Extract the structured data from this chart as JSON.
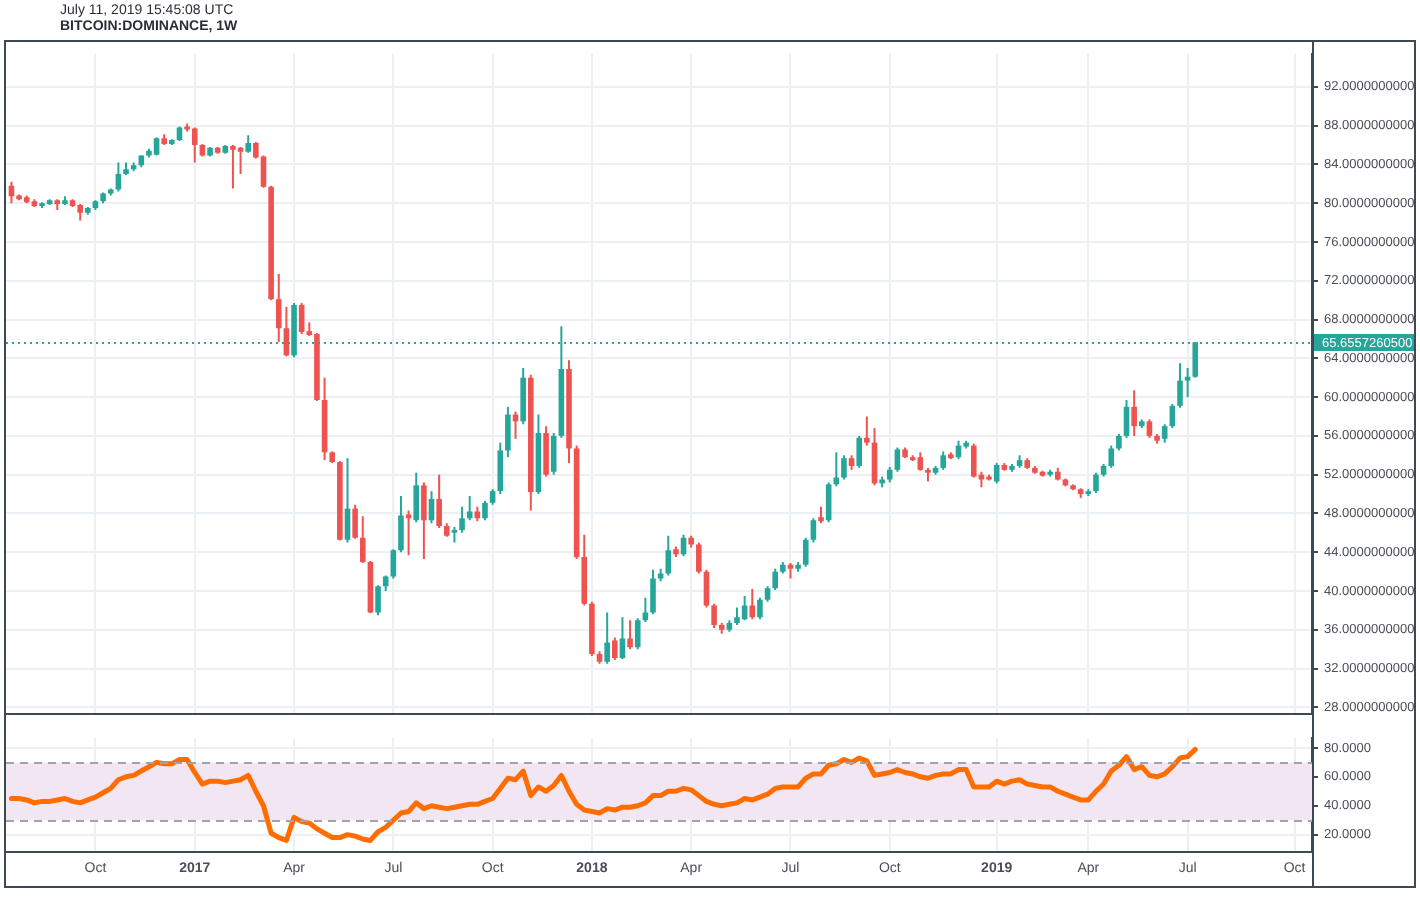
{
  "chart_data": [
    {
      "type": "candlestick",
      "title": "BITCOIN:DOMINANCE, 1W",
      "annotations": [
        "July 11, 2019 15:45:08 UTC"
      ],
      "x": [
        "2016-07-18",
        "2016-07-25",
        "2016-08-01",
        "2016-08-08",
        "2016-08-15",
        "2016-08-22",
        "2016-08-29",
        "2016-09-05",
        "2016-09-12",
        "2016-09-19",
        "2016-09-26",
        "2016-10-03",
        "2016-10-10",
        "2016-10-17",
        "2016-10-24",
        "2016-10-31",
        "2016-11-07",
        "2016-11-14",
        "2016-11-21",
        "2016-11-28",
        "2016-12-05",
        "2016-12-12",
        "2016-12-19",
        "2016-12-26",
        "2017-01-02",
        "2017-01-09",
        "2017-01-16",
        "2017-01-23",
        "2017-01-30",
        "2017-02-06",
        "2017-02-13",
        "2017-02-20",
        "2017-02-27",
        "2017-03-06",
        "2017-03-13",
        "2017-03-20",
        "2017-03-27",
        "2017-04-03",
        "2017-04-10",
        "2017-04-17",
        "2017-04-24",
        "2017-05-01",
        "2017-05-08",
        "2017-05-15",
        "2017-05-22",
        "2017-05-29",
        "2017-06-05",
        "2017-06-12",
        "2017-06-19",
        "2017-06-26",
        "2017-07-03",
        "2017-07-10",
        "2017-07-17",
        "2017-07-24",
        "2017-07-31",
        "2017-08-07",
        "2017-08-14",
        "2017-08-21",
        "2017-08-28",
        "2017-09-04",
        "2017-09-11",
        "2017-09-18",
        "2017-09-25",
        "2017-10-02",
        "2017-10-09",
        "2017-10-16",
        "2017-10-23",
        "2017-10-30",
        "2017-11-06",
        "2017-11-13",
        "2017-11-20",
        "2017-11-27",
        "2017-12-04",
        "2017-12-11",
        "2017-12-18",
        "2017-12-25",
        "2018-01-01",
        "2018-01-08",
        "2018-01-15",
        "2018-01-22",
        "2018-01-29",
        "2018-02-05",
        "2018-02-12",
        "2018-02-19",
        "2018-02-26",
        "2018-03-05",
        "2018-03-12",
        "2018-03-19",
        "2018-03-26",
        "2018-04-02",
        "2018-04-09",
        "2018-04-16",
        "2018-04-23",
        "2018-04-30",
        "2018-05-07",
        "2018-05-14",
        "2018-05-21",
        "2018-05-28",
        "2018-06-04",
        "2018-06-11",
        "2018-06-18",
        "2018-06-25",
        "2018-07-02",
        "2018-07-09",
        "2018-07-16",
        "2018-07-23",
        "2018-07-30",
        "2018-08-06",
        "2018-08-13",
        "2018-08-20",
        "2018-08-27",
        "2018-09-03",
        "2018-09-10",
        "2018-09-17",
        "2018-09-24",
        "2018-10-01",
        "2018-10-08",
        "2018-10-15",
        "2018-10-22",
        "2018-10-29",
        "2018-11-05",
        "2018-11-12",
        "2018-11-19",
        "2018-11-26",
        "2018-12-03",
        "2018-12-10",
        "2018-12-17",
        "2018-12-24",
        "2018-12-31",
        "2019-01-07",
        "2019-01-14",
        "2019-01-21",
        "2019-01-28",
        "2019-02-04",
        "2019-02-11",
        "2019-02-18",
        "2019-02-25",
        "2019-03-04",
        "2019-03-11",
        "2019-03-18",
        "2019-03-25",
        "2019-04-01",
        "2019-04-08",
        "2019-04-15",
        "2019-04-22",
        "2019-04-29",
        "2019-05-06",
        "2019-05-13",
        "2019-05-20",
        "2019-05-27",
        "2019-06-03",
        "2019-06-10",
        "2019-06-17",
        "2019-06-24",
        "2019-07-01",
        "2019-07-08"
      ],
      "ohlc": [
        [
          81.8,
          82.2,
          80.0,
          80.7
        ],
        [
          80.8,
          80.9,
          80.3,
          80.4
        ],
        [
          80.6,
          80.8,
          80.0,
          80.1
        ],
        [
          80.2,
          80.4,
          79.6,
          79.7
        ],
        [
          79.7,
          80.1,
          79.5,
          80.0
        ],
        [
          79.9,
          80.4,
          79.8,
          80.3
        ],
        [
          80.3,
          80.4,
          79.3,
          79.9
        ],
        [
          79.9,
          80.7,
          79.8,
          80.3
        ],
        [
          80.3,
          80.4,
          79.6,
          79.7
        ],
        [
          79.8,
          79.9,
          78.2,
          79.0
        ],
        [
          79.0,
          79.6,
          78.8,
          79.5
        ],
        [
          79.5,
          80.3,
          79.3,
          80.2
        ],
        [
          80.2,
          81.1,
          80.0,
          81.0
        ],
        [
          81.0,
          81.5,
          80.8,
          81.4
        ],
        [
          81.4,
          84.2,
          81.2,
          83.0
        ],
        [
          83.0,
          84.2,
          82.9,
          83.5
        ],
        [
          83.5,
          84.2,
          83.3,
          83.9
        ],
        [
          83.9,
          84.9,
          83.7,
          84.9
        ],
        [
          84.9,
          85.6,
          84.7,
          85.4
        ],
        [
          85.0,
          86.8,
          84.9,
          86.7
        ],
        [
          86.7,
          87.1,
          86.0,
          86.1
        ],
        [
          86.1,
          86.6,
          86.0,
          86.5
        ],
        [
          86.5,
          87.9,
          86.4,
          87.8
        ],
        [
          87.9,
          88.2,
          87.4,
          87.6
        ],
        [
          87.7,
          87.8,
          84.2,
          86.0
        ],
        [
          86.0,
          86.1,
          84.8,
          84.9
        ],
        [
          84.9,
          85.8,
          84.8,
          85.7
        ],
        [
          85.7,
          85.8,
          85.1,
          85.2
        ],
        [
          85.2,
          86.0,
          85.1,
          85.9
        ],
        [
          85.9,
          86.0,
          81.5,
          85.5
        ],
        [
          85.7,
          85.8,
          83.0,
          85.3
        ],
        [
          85.3,
          87.0,
          85.2,
          86.2
        ],
        [
          86.2,
          86.3,
          84.6,
          84.7
        ],
        [
          84.8,
          84.9,
          81.6,
          81.7
        ],
        [
          81.7,
          81.8,
          70.0,
          70.1
        ],
        [
          70.1,
          72.7,
          65.7,
          67.1
        ],
        [
          67.1,
          69.3,
          64.2,
          64.3
        ],
        [
          64.3,
          69.7,
          64.1,
          69.5
        ],
        [
          69.5,
          69.7,
          66.5,
          66.7
        ],
        [
          66.8,
          67.7,
          66.3,
          66.4
        ],
        [
          66.5,
          66.6,
          59.6,
          59.7
        ],
        [
          59.7,
          62.0,
          53.5,
          54.3
        ],
        [
          54.3,
          54.4,
          53.2,
          53.3
        ],
        [
          53.3,
          53.4,
          45.2,
          45.3
        ],
        [
          45.3,
          53.7,
          45.0,
          48.5
        ],
        [
          48.5,
          48.9,
          45.4,
          45.5
        ],
        [
          45.5,
          47.7,
          42.9,
          43.0
        ],
        [
          43.0,
          43.1,
          37.7,
          37.8
        ],
        [
          37.8,
          40.6,
          37.5,
          40.5
        ],
        [
          40.5,
          41.6,
          40.0,
          41.5
        ],
        [
          41.5,
          44.3,
          41.3,
          44.2
        ],
        [
          44.2,
          49.8,
          44.0,
          47.8
        ],
        [
          47.9,
          48.3,
          43.7,
          47.5
        ],
        [
          47.3,
          52.2,
          47.1,
          50.9
        ],
        [
          50.9,
          51.2,
          43.3,
          47.3
        ],
        [
          47.3,
          50.3,
          47.0,
          49.5
        ],
        [
          49.5,
          52.0,
          46.5,
          46.7
        ],
        [
          46.7,
          47.0,
          45.6,
          45.7
        ],
        [
          46.0,
          46.6,
          45.0,
          46.3
        ],
        [
          46.3,
          48.7,
          46.0,
          47.5
        ],
        [
          47.5,
          49.8,
          47.3,
          48.2
        ],
        [
          48.2,
          48.7,
          47.2,
          47.5
        ],
        [
          47.5,
          49.3,
          47.3,
          49.1
        ],
        [
          49.1,
          50.5,
          48.9,
          50.3
        ],
        [
          50.3,
          55.3,
          50.0,
          54.5
        ],
        [
          54.5,
          59.0,
          53.8,
          58.2
        ],
        [
          58.2,
          58.5,
          55.7,
          57.5
        ],
        [
          57.5,
          63.0,
          57.2,
          62.0
        ],
        [
          62.0,
          62.3,
          48.3,
          50.2
        ],
        [
          50.2,
          58.2,
          50.0,
          56.3
        ],
        [
          56.3,
          57.0,
          51.8,
          52.0
        ],
        [
          52.3,
          56.3,
          52.0,
          56.0
        ],
        [
          56.0,
          67.3,
          55.8,
          62.9
        ],
        [
          62.9,
          63.8,
          53.2,
          54.7
        ],
        [
          54.7,
          55.0,
          43.3,
          43.5
        ],
        [
          43.5,
          45.8,
          38.5,
          38.7
        ],
        [
          38.7,
          38.9,
          33.3,
          33.5
        ],
        [
          33.5,
          33.8,
          32.5,
          32.7
        ],
        [
          32.7,
          37.8,
          32.5,
          34.7
        ],
        [
          34.9,
          35.2,
          32.9,
          33.1
        ],
        [
          33.1,
          37.3,
          33.0,
          35.1
        ],
        [
          35.1,
          37.0,
          34.0,
          34.2
        ],
        [
          34.2,
          37.2,
          34.0,
          37.0
        ],
        [
          37.0,
          39.3,
          36.8,
          37.8
        ],
        [
          37.8,
          42.2,
          37.6,
          41.3
        ],
        [
          41.3,
          42.3,
          41.0,
          41.8
        ],
        [
          41.8,
          45.7,
          41.6,
          44.2
        ],
        [
          44.3,
          44.6,
          43.5,
          43.8
        ],
        [
          43.8,
          45.8,
          43.6,
          45.5
        ],
        [
          45.5,
          45.7,
          44.5,
          44.8
        ],
        [
          44.8,
          45.0,
          41.8,
          42.0
        ],
        [
          42.0,
          42.2,
          38.3,
          38.5
        ],
        [
          38.5,
          38.7,
          36.2,
          36.5
        ],
        [
          36.5,
          36.7,
          35.6,
          36.0
        ],
        [
          36.0,
          37.0,
          35.8,
          36.7
        ],
        [
          36.7,
          38.3,
          36.5,
          37.3
        ],
        [
          37.1,
          39.5,
          37.0,
          38.5
        ],
        [
          38.5,
          40.2,
          37.1,
          37.3
        ],
        [
          37.3,
          39.3,
          37.1,
          39.1
        ],
        [
          39.1,
          40.5,
          38.9,
          40.3
        ],
        [
          40.3,
          42.3,
          40.1,
          42.0
        ],
        [
          42.0,
          43.0,
          41.8,
          42.7
        ],
        [
          42.7,
          42.9,
          41.3,
          42.3
        ],
        [
          42.3,
          43.0,
          42.0,
          42.7
        ],
        [
          42.7,
          45.5,
          42.5,
          45.3
        ],
        [
          45.3,
          47.5,
          45.0,
          47.3
        ],
        [
          47.6,
          48.7,
          47.0,
          47.2
        ],
        [
          47.3,
          51.2,
          47.1,
          51.0
        ],
        [
          51.0,
          54.3,
          50.8,
          51.7
        ],
        [
          51.7,
          54.0,
          51.5,
          53.7
        ],
        [
          53.7,
          54.0,
          52.5,
          52.9
        ],
        [
          52.9,
          56.0,
          52.7,
          55.8
        ],
        [
          55.8,
          58.0,
          55.0,
          55.3
        ],
        [
          55.3,
          56.8,
          50.9,
          51.1
        ],
        [
          51.1,
          51.8,
          50.7,
          51.5
        ],
        [
          51.5,
          52.8,
          51.2,
          52.5
        ],
        [
          52.5,
          54.8,
          52.3,
          54.6
        ],
        [
          54.6,
          54.8,
          53.7,
          53.8
        ],
        [
          53.8,
          54.0,
          53.4,
          53.5
        ],
        [
          53.8,
          54.3,
          52.4,
          52.5
        ],
        [
          52.5,
          52.7,
          51.3,
          52.2
        ],
        [
          52.2,
          52.9,
          52.0,
          52.7
        ],
        [
          52.7,
          54.4,
          52.5,
          54.0
        ],
        [
          54.1,
          54.3,
          53.6,
          53.7
        ],
        [
          53.8,
          55.5,
          53.6,
          55.0
        ],
        [
          54.9,
          55.5,
          54.7,
          55.3
        ],
        [
          55.0,
          55.2,
          51.7,
          51.8
        ],
        [
          52.0,
          52.3,
          50.7,
          51.5
        ],
        [
          51.8,
          52.0,
          51.4,
          51.5
        ],
        [
          51.3,
          53.2,
          51.1,
          53.0
        ],
        [
          53.0,
          53.2,
          52.4,
          52.5
        ],
        [
          52.5,
          53.1,
          52.3,
          52.9
        ],
        [
          52.9,
          54.0,
          52.7,
          53.5
        ],
        [
          53.5,
          53.7,
          52.6,
          52.7
        ],
        [
          52.7,
          52.9,
          52.1,
          52.2
        ],
        [
          52.3,
          52.4,
          51.8,
          51.9
        ],
        [
          52.0,
          52.5,
          51.8,
          52.3
        ],
        [
          52.3,
          52.7,
          51.4,
          51.5
        ],
        [
          51.5,
          51.6,
          50.8,
          50.9
        ],
        [
          50.9,
          51.0,
          50.4,
          50.5
        ],
        [
          50.5,
          50.6,
          49.6,
          50.0
        ],
        [
          50.0,
          50.5,
          49.8,
          50.3
        ],
        [
          50.3,
          52.2,
          50.1,
          52.0
        ],
        [
          52.0,
          53.1,
          51.8,
          52.9
        ],
        [
          52.9,
          55.0,
          52.7,
          54.7
        ],
        [
          54.7,
          56.2,
          54.5,
          56.0
        ],
        [
          56.0,
          59.7,
          55.8,
          59.0
        ],
        [
          59.0,
          60.7,
          56.0,
          57.0
        ],
        [
          57.0,
          57.7,
          56.8,
          57.5
        ],
        [
          57.5,
          57.7,
          55.8,
          56.0
        ],
        [
          56.0,
          56.2,
          55.2,
          55.5
        ],
        [
          55.7,
          57.2,
          55.3,
          57.0
        ],
        [
          57.0,
          59.3,
          56.8,
          59.1
        ],
        [
          59.1,
          63.5,
          58.9,
          61.7
        ],
        [
          61.7,
          63.0,
          60.0,
          62.1
        ],
        [
          62.1,
          65.65572605,
          62.0,
          65.65572605
        ]
      ],
      "colors": [
        "#ef5350",
        "#ef5350",
        "#ef5350",
        "#ef5350",
        "#26a69a",
        "#26a69a",
        "#ef5350",
        "#26a69a",
        "#ef5350",
        "#ef5350",
        "#26a69a",
        "#26a69a",
        "#26a69a",
        "#26a69a",
        "#26a69a",
        "#26a69a",
        "#26a69a",
        "#26a69a",
        "#26a69a",
        "#26a69a",
        "#ef5350",
        "#26a69a",
        "#26a69a",
        "#ef5350",
        "#ef5350",
        "#ef5350",
        "#26a69a",
        "#ef5350",
        "#26a69a",
        "#ef5350",
        "#ef5350",
        "#26a69a",
        "#ef5350",
        "#ef5350",
        "#ef5350",
        "#ef5350",
        "#ef5350",
        "#26a69a",
        "#ef5350",
        "#ef5350",
        "#ef5350",
        "#ef5350",
        "#ef5350",
        "#ef5350",
        "#26a69a",
        "#ef5350",
        "#ef5350",
        "#ef5350",
        "#26a69a",
        "#26a69a",
        "#26a69a",
        "#26a69a",
        "#ef5350",
        "#26a69a",
        "#ef5350",
        "#26a69a",
        "#ef5350",
        "#ef5350",
        "#26a69a",
        "#26a69a",
        "#26a69a",
        "#ef5350",
        "#26a69a",
        "#26a69a",
        "#26a69a",
        "#26a69a",
        "#ef5350",
        "#26a69a",
        "#ef5350",
        "#26a69a",
        "#ef5350",
        "#26a69a",
        "#26a69a",
        "#ef5350",
        "#ef5350",
        "#ef5350",
        "#ef5350",
        "#ef5350",
        "#26a69a",
        "#ef5350",
        "#26a69a",
        "#ef5350",
        "#26a69a",
        "#26a69a",
        "#26a69a",
        "#26a69a",
        "#26a69a",
        "#ef5350",
        "#26a69a",
        "#ef5350",
        "#ef5350",
        "#ef5350",
        "#ef5350",
        "#ef5350",
        "#26a69a",
        "#26a69a",
        "#26a69a",
        "#ef5350",
        "#26a69a",
        "#26a69a",
        "#26a69a",
        "#26a69a",
        "#ef5350",
        "#26a69a",
        "#26a69a",
        "#26a69a",
        "#ef5350",
        "#26a69a",
        "#26a69a",
        "#26a69a",
        "#ef5350",
        "#26a69a",
        "#ef5350",
        "#ef5350",
        "#26a69a",
        "#26a69a",
        "#26a69a",
        "#ef5350",
        "#ef5350",
        "#ef5350",
        "#ef5350",
        "#26a69a",
        "#26a69a",
        "#ef5350",
        "#26a69a",
        "#26a69a",
        "#ef5350",
        "#ef5350",
        "#ef5350",
        "#26a69a",
        "#ef5350",
        "#26a69a",
        "#26a69a",
        "#ef5350",
        "#ef5350",
        "#ef5350",
        "#26a69a",
        "#ef5350",
        "#ef5350",
        "#ef5350",
        "#ef5350",
        "#26a69a",
        "#26a69a",
        "#26a69a",
        "#26a69a",
        "#26a69a",
        "#26a69a",
        "#ef5350",
        "#26a69a",
        "#ef5350",
        "#ef5350",
        "#26a69a",
        "#26a69a",
        "#26a69a",
        "#26a69a",
        "#26a69a"
      ],
      "xlim": [
        "2016-07-13",
        "2019-10-23"
      ],
      "xticks": [
        {
          "value": "2016-10-03",
          "label": null
        },
        {
          "value": "2017-01-02",
          "label": null
        },
        {
          "value": "2017-04-03",
          "label": null
        },
        {
          "value": "2017-07-03",
          "label": null
        },
        {
          "value": "2017-10-02",
          "label": null
        },
        {
          "value": "2018-01-01",
          "label": null
        },
        {
          "value": "2018-04-02",
          "label": null
        },
        {
          "value": "2018-07-02",
          "label": null
        },
        {
          "value": "2018-10-01",
          "label": null
        },
        {
          "value": "2019-01-07",
          "label": null
        },
        {
          "value": "2019-04-01",
          "label": null
        },
        {
          "value": "2019-07-01",
          "label": null
        },
        {
          "value": "2019-10-07",
          "label": null
        }
      ],
      "ylim": [
        27.3,
        95.4
      ],
      "yticks": [
        {
          "value": 28,
          "label": "28.0000000000"
        },
        {
          "value": 32,
          "label": "32.0000000000"
        },
        {
          "value": 36,
          "label": "36.0000000000"
        },
        {
          "value": 40,
          "label": "40.0000000000"
        },
        {
          "value": 44,
          "label": "44.0000000000"
        },
        {
          "value": 48,
          "label": "48.0000000000"
        },
        {
          "value": 52,
          "label": "52.0000000000"
        },
        {
          "value": 56,
          "label": "56.0000000000"
        },
        {
          "value": 60,
          "label": "60.0000000000"
        },
        {
          "value": 64,
          "label": "64.0000000000"
        },
        {
          "value": 68,
          "label": "68.0000000000"
        },
        {
          "value": 72,
          "label": "72.0000000000"
        },
        {
          "value": 76,
          "label": "76.0000000000"
        },
        {
          "value": 80,
          "label": "80.0000000000"
        },
        {
          "value": 84,
          "label": "84.0000000000"
        },
        {
          "value": 88,
          "label": "88.0000000000"
        },
        {
          "value": 92,
          "label": "92.0000000000"
        }
      ],
      "grid": true,
      "tick_labels": "y",
      "ref_lines": [
        {
          "axis": "y",
          "value": 65.65572605,
          "label": "65.6557260500",
          "color": "#26a69a",
          "line_style": "dotted"
        }
      ]
    },
    {
      "type": "line",
      "x": [
        "2016-07-18",
        "2016-07-25",
        "2016-08-01",
        "2016-08-08",
        "2016-08-15",
        "2016-08-22",
        "2016-08-29",
        "2016-09-05",
        "2016-09-12",
        "2016-09-19",
        "2016-09-26",
        "2016-10-03",
        "2016-10-10",
        "2016-10-17",
        "2016-10-24",
        "2016-10-31",
        "2016-11-07",
        "2016-11-14",
        "2016-11-21",
        "2016-11-28",
        "2016-12-05",
        "2016-12-12",
        "2016-12-19",
        "2016-12-26",
        "2017-01-02",
        "2017-01-09",
        "2017-01-16",
        "2017-01-23",
        "2017-01-30",
        "2017-02-06",
        "2017-02-13",
        "2017-02-20",
        "2017-02-27",
        "2017-03-06",
        "2017-03-13",
        "2017-03-20",
        "2017-03-27",
        "2017-04-03",
        "2017-04-10",
        "2017-04-17",
        "2017-04-24",
        "2017-05-01",
        "2017-05-08",
        "2017-05-15",
        "2017-05-22",
        "2017-05-29",
        "2017-06-05",
        "2017-06-12",
        "2017-06-19",
        "2017-06-26",
        "2017-07-03",
        "2017-07-10",
        "2017-07-17",
        "2017-07-24",
        "2017-07-31",
        "2017-08-07",
        "2017-08-14",
        "2017-08-21",
        "2017-08-28",
        "2017-09-04",
        "2017-09-11",
        "2017-09-18",
        "2017-09-25",
        "2017-10-02",
        "2017-10-09",
        "2017-10-16",
        "2017-10-23",
        "2017-10-30",
        "2017-11-06",
        "2017-11-13",
        "2017-11-20",
        "2017-11-27",
        "2017-12-04",
        "2017-12-11",
        "2017-12-18",
        "2017-12-25",
        "2018-01-01",
        "2018-01-08",
        "2018-01-15",
        "2018-01-22",
        "2018-01-29",
        "2018-02-05",
        "2018-02-12",
        "2018-02-19",
        "2018-02-26",
        "2018-03-05",
        "2018-03-12",
        "2018-03-19",
        "2018-03-26",
        "2018-04-02",
        "2018-04-09",
        "2018-04-16",
        "2018-04-23",
        "2018-04-30",
        "2018-05-07",
        "2018-05-14",
        "2018-05-21",
        "2018-05-28",
        "2018-06-04",
        "2018-06-11",
        "2018-06-18",
        "2018-06-25",
        "2018-07-02",
        "2018-07-09",
        "2018-07-16",
        "2018-07-23",
        "2018-07-30",
        "2018-08-06",
        "2018-08-13",
        "2018-08-20",
        "2018-08-27",
        "2018-09-03",
        "2018-09-10",
        "2018-09-17",
        "2018-09-24",
        "2018-10-01",
        "2018-10-08",
        "2018-10-15",
        "2018-10-22",
        "2018-10-29",
        "2018-11-05",
        "2018-11-12",
        "2018-11-19",
        "2018-11-26",
        "2018-12-03",
        "2018-12-10",
        "2018-12-17",
        "2018-12-24",
        "2018-12-31",
        "2019-01-07",
        "2019-01-14",
        "2019-01-21",
        "2019-01-28",
        "2019-02-04",
        "2019-02-11",
        "2019-02-18",
        "2019-02-25",
        "2019-03-04",
        "2019-03-11",
        "2019-03-18",
        "2019-03-25",
        "2019-04-01",
        "2019-04-08",
        "2019-04-15",
        "2019-04-22",
        "2019-04-29",
        "2019-05-06",
        "2019-05-13",
        "2019-05-20",
        "2019-05-27",
        "2019-06-03",
        "2019-06-10",
        "2019-06-17",
        "2019-06-24",
        "2019-07-01",
        "2019-07-08"
      ],
      "series": [
        {
          "color": "#ff6d00",
          "values": [
            45,
            45,
            44,
            42,
            43,
            43,
            44,
            45,
            43,
            42,
            44,
            46,
            49,
            52,
            58,
            60,
            61,
            64,
            67,
            70,
            69,
            69,
            72,
            72,
            63,
            55,
            57,
            57,
            56,
            57,
            58,
            61,
            50,
            40,
            21,
            18,
            16,
            32,
            29,
            28,
            24,
            21,
            18,
            18,
            20,
            19,
            17,
            16,
            22,
            25,
            30,
            35,
            36,
            42,
            38,
            40,
            39,
            38,
            39,
            40,
            41,
            41,
            43,
            45,
            52,
            59,
            58,
            64,
            47,
            53,
            50,
            54,
            61,
            50,
            41,
            37,
            36,
            35,
            38,
            37,
            39,
            39,
            40,
            42,
            47,
            47,
            50,
            50,
            52,
            51,
            47,
            43,
            41,
            40,
            41,
            42,
            45,
            44,
            46,
            48,
            52,
            53,
            53,
            53,
            59,
            62,
            62,
            68,
            69,
            72,
            70,
            73,
            71,
            61,
            62,
            63,
            65,
            63,
            62,
            60,
            59,
            61,
            62,
            62,
            65,
            65,
            53,
            53,
            53,
            57,
            55,
            57,
            58,
            55,
            54,
            53,
            53,
            50,
            48,
            46,
            44,
            44,
            50,
            55,
            64,
            68,
            74,
            65,
            67,
            61,
            60,
            62,
            67,
            73,
            74,
            79
          ]
        }
      ],
      "xlim": [
        "2016-07-13",
        "2019-10-23"
      ],
      "xticks": [
        {
          "value": "2016-10-03",
          "label": "Oct"
        },
        {
          "value": "2017-01-02",
          "label": "2017"
        },
        {
          "value": "2017-04-03",
          "label": "Apr"
        },
        {
          "value": "2017-07-03",
          "label": "Jul"
        },
        {
          "value": "2017-10-02",
          "label": "Oct"
        },
        {
          "value": "2018-01-01",
          "label": "2018"
        },
        {
          "value": "2018-04-02",
          "label": "Apr"
        },
        {
          "value": "2018-07-02",
          "label": "Jul"
        },
        {
          "value": "2018-10-01",
          "label": "Oct"
        },
        {
          "value": "2019-01-07",
          "label": "2019"
        },
        {
          "value": "2019-04-01",
          "label": "Apr"
        },
        {
          "value": "2019-07-01",
          "label": "Jul"
        },
        {
          "value": "2019-10-07",
          "label": "Oct"
        }
      ],
      "ylim": [
        8,
        87
      ],
      "yticks": [
        {
          "value": 20,
          "label": "20.0000"
        },
        {
          "value": 40,
          "label": "40.0000"
        },
        {
          "value": 60,
          "label": "60.0000"
        },
        {
          "value": 80,
          "label": "80.0000"
        }
      ],
      "grid": true,
      "bands": [
        {
          "axis": "y",
          "from": 30,
          "to": 70,
          "color": "#f2e6f3"
        }
      ],
      "ref_lines": [
        {
          "axis": "y",
          "value": 70,
          "color": "#9ea3ad",
          "line_style": "dashed"
        },
        {
          "axis": "y",
          "value": 30,
          "color": "#9ea3ad",
          "line_style": "dashed"
        }
      ]
    }
  ]
}
